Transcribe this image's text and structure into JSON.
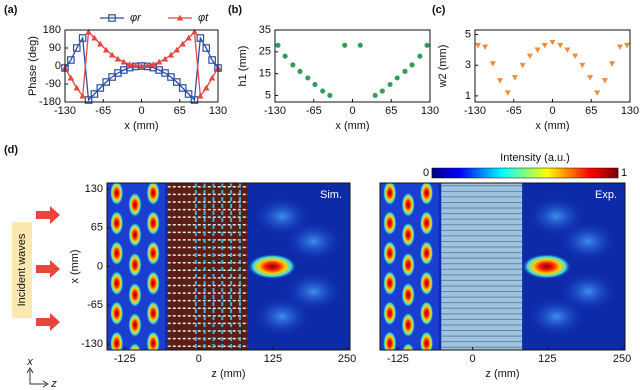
{
  "chart_data": [
    {
      "type": "line",
      "panel_label": "(a)",
      "xlabel": "x (mm)",
      "ylabel": "Phase (deg)",
      "x": [
        -130,
        -120,
        -110,
        -100,
        -90,
        -80,
        -70,
        -60,
        -50,
        -40,
        -30,
        -20,
        -10,
        0,
        10,
        20,
        30,
        40,
        50,
        60,
        70,
        80,
        90,
        100,
        110,
        120,
        130
      ],
      "series": [
        {
          "name": "φr",
          "color": "#2b4ea0",
          "marker": "square",
          "values": [
            -10,
            30,
            90,
            140,
            -170,
            -140,
            -110,
            -80,
            -55,
            -35,
            -20,
            -8,
            -2,
            0,
            -2,
            -8,
            -20,
            -35,
            -55,
            -80,
            -110,
            -140,
            -170,
            140,
            90,
            30,
            -10
          ]
        },
        {
          "name": "φt",
          "color": "#e8453c",
          "marker": "triangle",
          "values": [
            -10,
            -60,
            -110,
            -150,
            170,
            140,
            110,
            80,
            55,
            35,
            20,
            8,
            2,
            0,
            2,
            8,
            20,
            35,
            55,
            80,
            110,
            140,
            170,
            -150,
            -110,
            -60,
            -10
          ]
        }
      ],
      "xlim": [
        -130,
        130
      ],
      "ylim": [
        -180,
        180
      ],
      "xticks": [
        -130,
        -65,
        0,
        65,
        130
      ],
      "yticks": [
        -180,
        -90,
        0,
        90,
        180
      ]
    },
    {
      "type": "scatter",
      "panel_label": "(b)",
      "xlabel": "x (mm)",
      "ylabel": "h1 (mm)",
      "color": "#2e9e5a",
      "marker": "circle",
      "x": [
        -125,
        -113,
        -100,
        -88,
        -75,
        -63,
        -50,
        -38,
        -13,
        13,
        38,
        50,
        63,
        75,
        88,
        100,
        113,
        125
      ],
      "values": [
        28,
        23,
        19,
        16,
        13,
        10,
        7,
        5,
        28,
        28,
        5,
        7,
        10,
        13,
        16,
        19,
        23,
        28
      ],
      "xlim": [
        -130,
        130
      ],
      "ylim": [
        2,
        35
      ],
      "xticks": [
        -130,
        -65,
        0,
        65,
        130
      ],
      "yticks": [
        5,
        15,
        25,
        35
      ]
    },
    {
      "type": "scatter",
      "panel_label": "(c)",
      "xlabel": "x (mm)",
      "ylabel": "w2 (mm)",
      "color": "#f08a3c",
      "marker": "triangle-down",
      "x": [
        -125,
        -113,
        -100,
        -88,
        -75,
        -63,
        -50,
        -38,
        -25,
        -13,
        0,
        13,
        25,
        38,
        50,
        63,
        75,
        88,
        100,
        113,
        125
      ],
      "values": [
        4.3,
        4.2,
        3.1,
        2.0,
        1.2,
        2.2,
        3.0,
        3.6,
        4.0,
        4.3,
        4.5,
        4.3,
        4.0,
        3.6,
        3.0,
        2.2,
        1.2,
        2.0,
        3.1,
        4.2,
        4.3
      ],
      "xlim": [
        -130,
        130
      ],
      "ylim": [
        0.6,
        5.3
      ],
      "xticks": [
        -130,
        -65,
        0,
        65,
        130
      ],
      "yticks": [
        1,
        3,
        5
      ]
    },
    {
      "type": "heatmap",
      "panel_label": "(d)",
      "title": "Sim.",
      "variant": "simulation",
      "xlabel": "z (mm)",
      "ylabel": "x (mm)",
      "annotation": "Incident waves",
      "orientation": [
        "x",
        "z"
      ],
      "xlim": [
        -155,
        255
      ],
      "ylim": [
        -140,
        140
      ],
      "xticks": [
        -125,
        0,
        125,
        250
      ],
      "yticks": [
        -130,
        -65,
        0,
        65,
        130
      ]
    },
    {
      "type": "heatmap",
      "title": "Exp.",
      "variant": "experiment",
      "xlabel": "z (mm)",
      "colorbar": {
        "label": "Intensity (a.u.)",
        "ticks": [
          0,
          1
        ]
      },
      "xlim": [
        -155,
        255
      ],
      "ylim": [
        -140,
        140
      ],
      "xticks": [
        -125,
        0,
        125,
        250
      ],
      "yticks": [
        -130,
        -65,
        0,
        65,
        130
      ]
    }
  ]
}
